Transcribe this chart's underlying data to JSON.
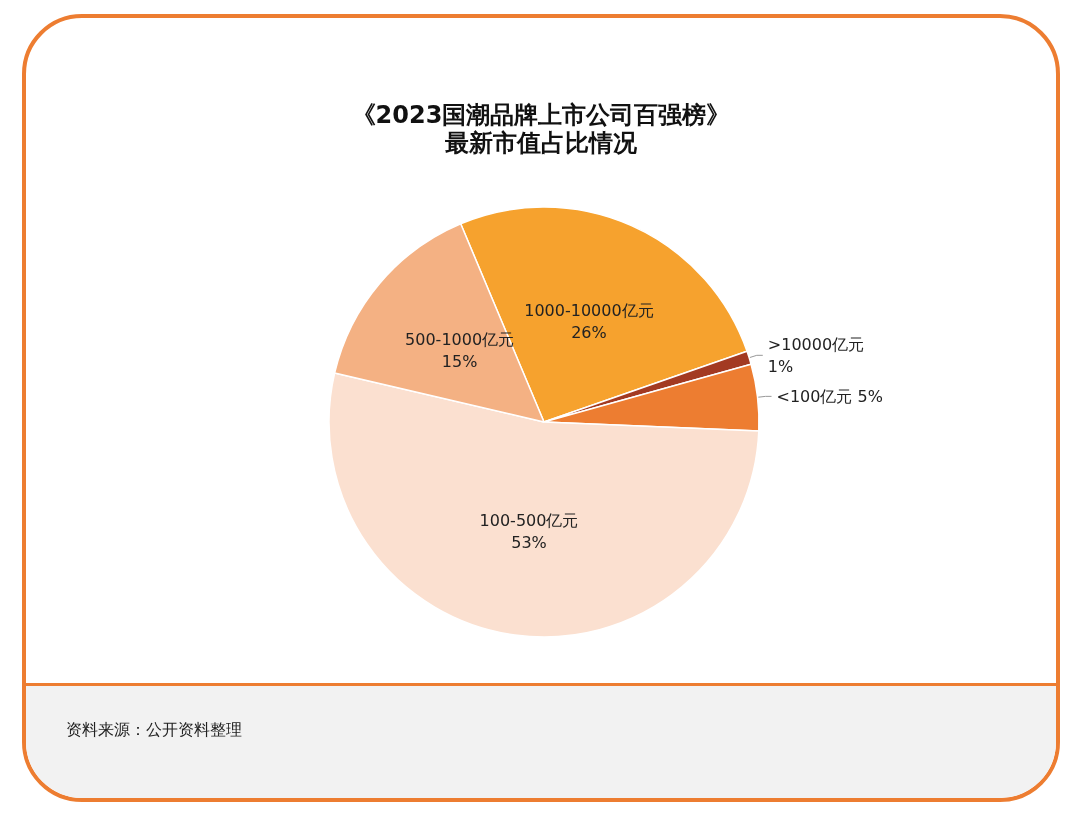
{
  "chart_data": {
    "type": "pie",
    "title": "《2023国潮品牌上市公司百强榜》",
    "subtitle": "最新市值占比情况",
    "categories": [
      "1000-10000亿元",
      ">10000亿元",
      "<100亿元",
      "100-500亿元",
      "500-1000亿元"
    ],
    "values": [
      26,
      1,
      5,
      53,
      15
    ],
    "colors": [
      "#f6a22e",
      "#a33a22",
      "#ed7d31",
      "#fbe0d0",
      "#f4b183"
    ],
    "value_labels": [
      "26%",
      "1%",
      "5%",
      "53%",
      "15%"
    ],
    "legend": false,
    "annotations": [
      "资料来源：公开资料整理"
    ]
  }
}
